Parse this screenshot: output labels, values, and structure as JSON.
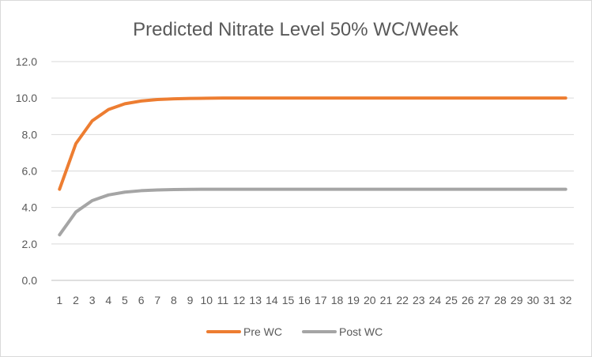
{
  "chart_data": {
    "type": "line",
    "title": "Predicted Nitrate Level 50% WC/Week",
    "xlabel": "",
    "ylabel": "",
    "categories": [
      "1",
      "2",
      "3",
      "4",
      "5",
      "6",
      "7",
      "8",
      "9",
      "10",
      "11",
      "12",
      "13",
      "14",
      "15",
      "16",
      "17",
      "18",
      "19",
      "20",
      "21",
      "22",
      "23",
      "24",
      "25",
      "26",
      "27",
      "28",
      "29",
      "30",
      "31",
      "32"
    ],
    "y_tick_labels": [
      "0.0",
      "2.0",
      "4.0",
      "6.0",
      "8.0",
      "10.0",
      "12.0"
    ],
    "ylim": [
      0,
      12
    ],
    "grid": true,
    "legend": "bottom",
    "series": [
      {
        "name": "Pre WC",
        "color": "#ed7d31",
        "values": [
          5.0,
          7.5,
          8.75,
          9.375,
          9.6875,
          9.84,
          9.92,
          9.96,
          9.98,
          9.99,
          10.0,
          10.0,
          10.0,
          10.0,
          10.0,
          10.0,
          10.0,
          10.0,
          10.0,
          10.0,
          10.0,
          10.0,
          10.0,
          10.0,
          10.0,
          10.0,
          10.0,
          10.0,
          10.0,
          10.0,
          10.0,
          10.0
        ]
      },
      {
        "name": "Post WC",
        "color": "#a5a5a5",
        "values": [
          2.5,
          3.75,
          4.375,
          4.6875,
          4.84,
          4.92,
          4.96,
          4.98,
          4.99,
          5.0,
          5.0,
          5.0,
          5.0,
          5.0,
          5.0,
          5.0,
          5.0,
          5.0,
          5.0,
          5.0,
          5.0,
          5.0,
          5.0,
          5.0,
          5.0,
          5.0,
          5.0,
          5.0,
          5.0,
          5.0,
          5.0,
          5.0
        ]
      }
    ]
  }
}
